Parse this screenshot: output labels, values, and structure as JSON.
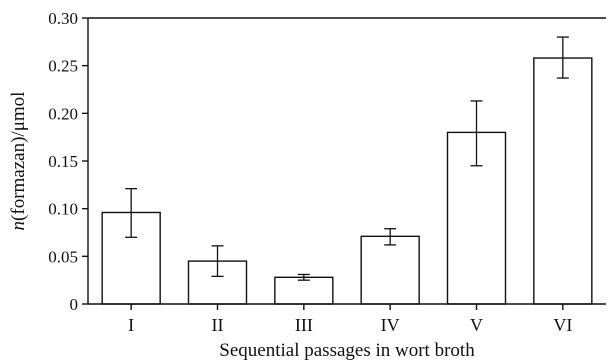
{
  "chart_data": {
    "type": "bar",
    "title": "",
    "xlabel": "Sequential passages in wort broth",
    "ylabel": "n(formazan)/μmol",
    "categories": [
      "I",
      "II",
      "III",
      "IV",
      "V",
      "VI"
    ],
    "values": [
      0.096,
      0.045,
      0.028,
      0.071,
      0.18,
      0.258
    ],
    "error_low": [
      0.07,
      0.029,
      0.025,
      0.062,
      0.145,
      0.237
    ],
    "error_high": [
      0.121,
      0.061,
      0.031,
      0.079,
      0.213,
      0.28
    ],
    "ylim": [
      0,
      0.3
    ],
    "yticks": [
      "0",
      "0.05",
      "0.10",
      "0.15",
      "0.20",
      "0.25",
      "0.30"
    ],
    "ytick_values": [
      0,
      0.05,
      0.1,
      0.15,
      0.2,
      0.25,
      0.3
    ],
    "grid": false,
    "bar_fill": "#ffffff",
    "bar_stroke": "#111111"
  }
}
